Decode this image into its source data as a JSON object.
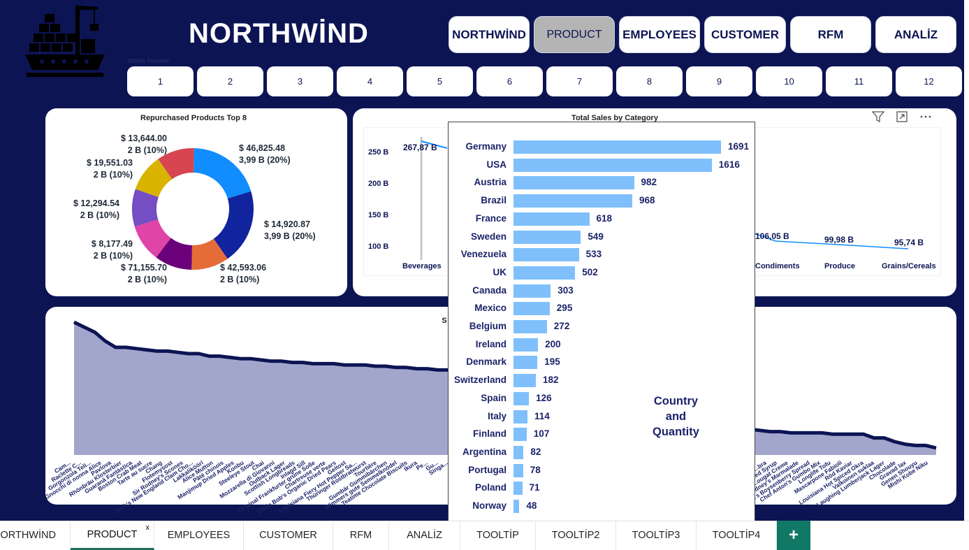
{
  "app": {
    "title": "NORTHWİND"
  },
  "nav": [
    {
      "label": "NORTHWİND"
    },
    {
      "label": "PRODUCT",
      "active": true
    },
    {
      "label": "EMPLOYEES"
    },
    {
      "label": "CUSTOMER"
    },
    {
      "label": "RFM"
    },
    {
      "label": "ANALİZ"
    }
  ],
  "month_slicer": {
    "label": "Month Number",
    "items": [
      "1",
      "2",
      "3",
      "4",
      "5",
      "6",
      "7",
      "8",
      "9",
      "10",
      "11",
      "12"
    ]
  },
  "donut": {
    "title": "Repurchased Products Top 8",
    "slices": [
      {
        "amount": "$ 46,825.48",
        "count": "3,99 B (20%)",
        "share": 20,
        "color": "#118dff"
      },
      {
        "amount": "$ 14,920.87",
        "count": "3,99 B (20%)",
        "share": 20,
        "color": "#12239e"
      },
      {
        "amount": "$ 42,593.06",
        "count": "2 B (10%)",
        "share": 10,
        "color": "#e66c37"
      },
      {
        "amount": "$ 71,155.70",
        "count": "2 B (10%)",
        "share": 10,
        "color": "#6b007b"
      },
      {
        "amount": "$ 8,177.49",
        "count": "2 B (10%)",
        "share": 10,
        "color": "#e044a7"
      },
      {
        "amount": "$ 12,294.54",
        "count": "2 B (10%)",
        "share": 10,
        "color": "#744ec2"
      },
      {
        "amount": "$ 19,551.03",
        "count": "2 B (10%)",
        "share": 10,
        "color": "#d9b300"
      },
      {
        "amount": "$ 13,644.00",
        "count": "2 B (10%)",
        "share": 10,
        "color": "#d64550"
      }
    ]
  },
  "category_chart": {
    "title": "Total Sales by Category",
    "yticks": [
      "250 B",
      "200 B",
      "150 B",
      "100 B"
    ],
    "visible_categories": [
      {
        "name": "Beverages",
        "value_label": "267,87 B"
      },
      {
        "name": "Condiments",
        "value_label": "106,05 B"
      },
      {
        "name": "Produce",
        "value_label": "99,98 B"
      },
      {
        "name": "Grains/Cereals",
        "value_label": "95,74 B"
      }
    ]
  },
  "area_chart": {
    "title_fragment": "S",
    "fill_color": "#a3a6cc",
    "line_color": "#0c1453",
    "left_labels": [
      "Cam...",
      "Raclette C...",
      "Gorgonzola Teli...",
      "Gnocchi di nonna Alice",
      "Pavlova",
      "Rhönbräu Klosterbier",
      "Guaraná Fantástica",
      "Boston Crab Meat",
      "Tarte au sucre",
      "Chang",
      "Flotemysost",
      "Sir Rodney's Scones",
      "Jack's New England Clam Cho...",
      "Lakkalikööri",
      "Alice Mutton",
      "Pâté chinois",
      "Manjimup Dried Apples",
      "Konbu",
      "Steeleye Stout",
      "Chai",
      "Mozzarella di Giovanni",
      "Outback Lager",
      "Scottish Longbreads",
      "Inlagd Sill",
      "Original Frankfurter grüne Soße",
      "Chartreuse verte",
      "Uncle Bob's Organic Dried Pears",
      "Geitost",
      "Louisiana Fiery Hot Pepper Sa...",
      "Thüringer Rostbratwurst",
      "Tourtière",
      "Gumbär Gummibärchen",
      "Wimmers gute Semmelknödel",
      "Teatime Chocolate Biscuits",
      "Ikura",
      "Pe...",
      "Gu...",
      "Singa..."
    ],
    "right_labels": [
      "...bra",
      "...ed Syrup",
      "...ougat Creme",
      "...odney's Marmalade",
      "...ma's Boysenberry Spread",
      "Chef Anton's Gumbo Mix",
      "Longlife Tofu",
      "Mascarpone Fabioli",
      "Röd Kaviar",
      "Louisiana Hot Spiced Okra",
      "Valkoinen suklaa",
      "Laughing Lumberjack Lager",
      "Chocolade",
      "Gravad lax",
      "Genen Shouyu",
      "Mishi Kobe Niku"
    ],
    "points": [
      100,
      96,
      92,
      85,
      80,
      80,
      79,
      78,
      77,
      77,
      76,
      75,
      75,
      73,
      73,
      72,
      71,
      71,
      70,
      69,
      69,
      68,
      68,
      67,
      67,
      67,
      66,
      66,
      66,
      65,
      65,
      64,
      64,
      63,
      63,
      62,
      62,
      61,
      60,
      60,
      59,
      58,
      57,
      56,
      55,
      54,
      54,
      52,
      50,
      48,
      46,
      44,
      42,
      40,
      38,
      36,
      34,
      32,
      30,
      28,
      26,
      24,
      22,
      20,
      18,
      15,
      14,
      13,
      13,
      12,
      12,
      12,
      12,
      11,
      11,
      11,
      11,
      8,
      8,
      5,
      3,
      2,
      2,
      0
    ]
  },
  "tooltip": {
    "caption_line1": "Country",
    "caption_line2": "and",
    "caption_line3": "Quantity",
    "bar_color": "#7fbffc",
    "rows": [
      {
        "country": "Germany",
        "qty": 1691
      },
      {
        "country": "USA",
        "qty": 1616
      },
      {
        "country": "Austria",
        "qty": 982
      },
      {
        "country": "Brazil",
        "qty": 968
      },
      {
        "country": "France",
        "qty": 618
      },
      {
        "country": "Sweden",
        "qty": 549
      },
      {
        "country": "Venezuela",
        "qty": 533
      },
      {
        "country": "UK",
        "qty": 502
      },
      {
        "country": "Canada",
        "qty": 303
      },
      {
        "country": "Mexico",
        "qty": 295
      },
      {
        "country": "Belgium",
        "qty": 272
      },
      {
        "country": "Ireland",
        "qty": 200
      },
      {
        "country": "Denmark",
        "qty": 195
      },
      {
        "country": "Switzerland",
        "qty": 182
      },
      {
        "country": "Spain",
        "qty": 126
      },
      {
        "country": "Italy",
        "qty": 114
      },
      {
        "country": "Finland",
        "qty": 107
      },
      {
        "country": "Argentina",
        "qty": 82
      },
      {
        "country": "Portugal",
        "qty": 78
      },
      {
        "country": "Poland",
        "qty": 71
      },
      {
        "country": "Norway",
        "qty": 48
      }
    ]
  },
  "chart_data": {
    "type": "bar",
    "title": "",
    "categories": [
      "Germany",
      "USA",
      "Austria",
      "Brazil",
      "France",
      "Sweden",
      "Venezuela",
      "UK",
      "Canada",
      "Mexico",
      "Belgium",
      "Ireland",
      "Denmark",
      "Switzerland",
      "Spain",
      "Italy",
      "Finland",
      "Argentina",
      "Portugal",
      "Poland",
      "Norway"
    ],
    "values": [
      1691,
      1616,
      982,
      968,
      618,
      549,
      533,
      502,
      303,
      295,
      272,
      200,
      195,
      182,
      126,
      114,
      107,
      82,
      78,
      71,
      48
    ],
    "orientation": "horizontal",
    "xlim": [
      0,
      1691
    ]
  },
  "visual_header": {
    "filter_icon": "filter-icon",
    "focus_icon": "focus-mode-icon",
    "more_icon": "more-options-icon"
  },
  "tabs": [
    {
      "label": "NORTHWİND"
    },
    {
      "label": "PRODUCT",
      "active": true,
      "close": "x"
    },
    {
      "label": "EMPLOYEES"
    },
    {
      "label": "CUSTOMER"
    },
    {
      "label": "RFM"
    },
    {
      "label": "ANALİZ"
    },
    {
      "label": "TOOLTİP"
    },
    {
      "label": "TOOLTİP2"
    },
    {
      "label": "TOOLTİP3"
    },
    {
      "label": "TOOLTİP4"
    }
  ],
  "add_tab": "+"
}
